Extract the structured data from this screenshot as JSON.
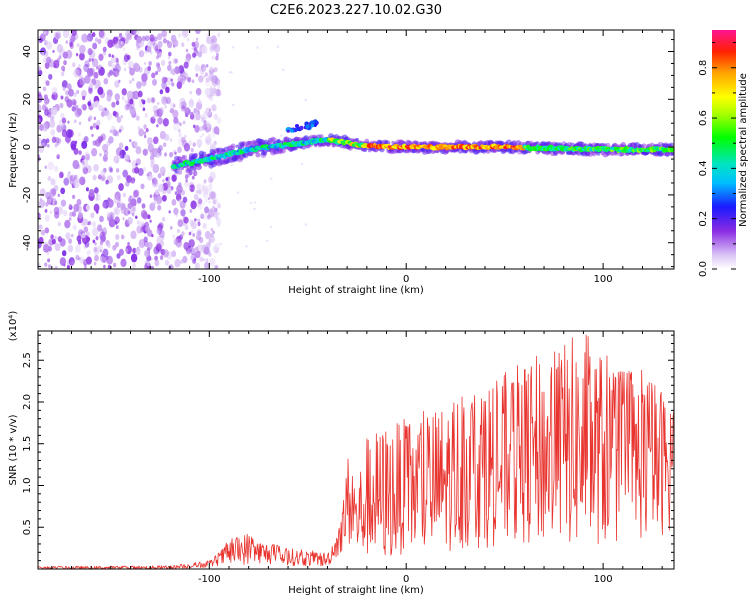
{
  "title": "C2E6.2023.227.10.02.G30",
  "chart_data": [
    {
      "type": "heatmap",
      "xlabel": "Height of straight line (km)",
      "ylabel": "Frequency (Hz)",
      "xlim": [
        -187,
        136
      ],
      "ylim": [
        -51,
        49
      ],
      "xticks": [
        -100,
        0,
        100
      ],
      "yticks": [
        -40,
        -20,
        0,
        20,
        40
      ],
      "colorbar": {
        "label": "Normalized spectral amplitude",
        "range": [
          0.0,
          0.95
        ],
        "ticks": [
          "0.0",
          "0.2",
          "0.4",
          "0.6",
          "0.8"
        ]
      },
      "features": [
        {
          "name": "noise",
          "x_range": [
            -187,
            -105
          ],
          "y_range": [
            -51,
            49
          ],
          "amplitude": 0.1
        },
        {
          "name": "trace",
          "points": [
            [
              -118,
              -8
            ],
            [
              -100,
              -5
            ],
            [
              -80,
              -1
            ],
            [
              -60,
              1
            ],
            [
              -40,
              3
            ],
            [
              -30,
              2
            ],
            [
              -20,
              0.5
            ],
            [
              0,
              0
            ],
            [
              50,
              0
            ],
            [
              100,
              -1
            ],
            [
              136,
              -1
            ]
          ],
          "amplitude_range": [
            0.3,
            0.95
          ]
        },
        {
          "name": "branch",
          "points": [
            [
              -60,
              7
            ],
            [
              -45,
              10
            ]
          ],
          "amplitude": 0.3
        }
      ]
    },
    {
      "type": "line",
      "xlabel": "Height of straight line (km)",
      "ylabel": "SNR (10 * v/v)",
      "multiplier": "(x10⁴)",
      "xlim": [
        -187,
        136
      ],
      "ylim": [
        0,
        2.85
      ],
      "xticks": [
        -100,
        0,
        100
      ],
      "yticks": [
        "0.5",
        "1.0",
        "1.5",
        "2.0",
        "2.5"
      ],
      "series_color": "#e8332e",
      "envelope": {
        "x": [
          -187,
          -120,
          -100,
          -95,
          -90,
          -80,
          -75,
          -60,
          -40,
          -33,
          -30,
          -25,
          -20,
          -10,
          0,
          10,
          20,
          30,
          40,
          50,
          60,
          70,
          80,
          90,
          100,
          110,
          120,
          130,
          136
        ],
        "ymin": [
          0.0,
          0.0,
          0.02,
          0.04,
          0.06,
          0.05,
          0.07,
          0.04,
          0.03,
          0.2,
          0.3,
          0.15,
          0.15,
          0.1,
          0.2,
          0.15,
          0.2,
          0.25,
          0.25,
          0.3,
          0.3,
          0.3,
          0.3,
          0.25,
          0.3,
          0.3,
          0.35,
          0.4,
          0.5
        ],
        "ymax": [
          0.03,
          0.04,
          0.1,
          0.2,
          0.35,
          0.45,
          0.35,
          0.25,
          0.2,
          0.6,
          1.4,
          1.1,
          1.6,
          1.75,
          1.8,
          1.9,
          2.0,
          2.2,
          2.3,
          2.35,
          2.5,
          2.6,
          2.75,
          2.85,
          2.6,
          2.4,
          2.4,
          2.2,
          2.0
        ]
      }
    }
  ]
}
